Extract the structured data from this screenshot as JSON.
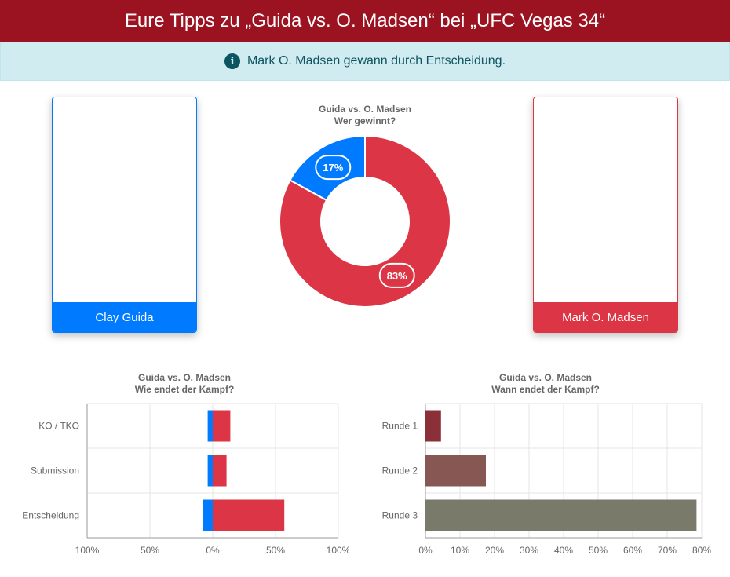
{
  "header": {
    "title": "Eure Tipps zu „Guida vs. O. Madsen“ bei „UFC Vegas 34“"
  },
  "alert": {
    "icon": "info-icon",
    "text": "Mark O. Madsen gewann durch Entscheidung."
  },
  "fighters": {
    "left": "Clay Guida",
    "right": "Mark O. Madsen"
  },
  "colors": {
    "header": "#9b1320",
    "blue": "#007bff",
    "red": "#dc3545",
    "round1": "#8b3039",
    "round2": "#875753",
    "round3": "#7a7a6a"
  },
  "chart_data": [
    {
      "type": "pie",
      "title": "Guida vs. O. Madsen",
      "subtitle": "Wer gewinnt?",
      "slices": [
        {
          "name": "Clay Guida",
          "value": 17,
          "label": "17%",
          "color": "#007bff"
        },
        {
          "name": "Mark O. Madsen",
          "value": 83,
          "label": "83%",
          "color": "#dc3545"
        }
      ]
    },
    {
      "type": "bar",
      "orientation": "horizontal",
      "stacked": true,
      "title": "Guida vs. O. Madsen",
      "subtitle": "Wie endet der Kampf?",
      "categories": [
        "KO / TKO",
        "Submission",
        "Entscheidung"
      ],
      "series": [
        {
          "name": "Clay Guida",
          "color": "#007bff",
          "values": [
            -4,
            -4,
            -8
          ]
        },
        {
          "name": "Mark O. Madsen",
          "color": "#dc3545",
          "values": [
            14,
            11,
            57
          ]
        }
      ],
      "xlim": [
        -100,
        100
      ],
      "xticks": [
        "100%",
        "50%",
        "0%",
        "50%",
        "100%"
      ],
      "grid": true
    },
    {
      "type": "bar",
      "orientation": "horizontal",
      "title": "Guida vs. O. Madsen",
      "subtitle": "Wann endet der Kampf?",
      "categories": [
        "Runde 1",
        "Runde 2",
        "Runde 3"
      ],
      "values": [
        4.5,
        17.5,
        78.5
      ],
      "colors": [
        "#8b3039",
        "#875753",
        "#7a7a6a"
      ],
      "xlim": [
        0,
        80
      ],
      "xticks": [
        "0%",
        "10%",
        "20%",
        "30%",
        "40%",
        "50%",
        "60%",
        "70%",
        "80%"
      ],
      "grid": true
    }
  ]
}
